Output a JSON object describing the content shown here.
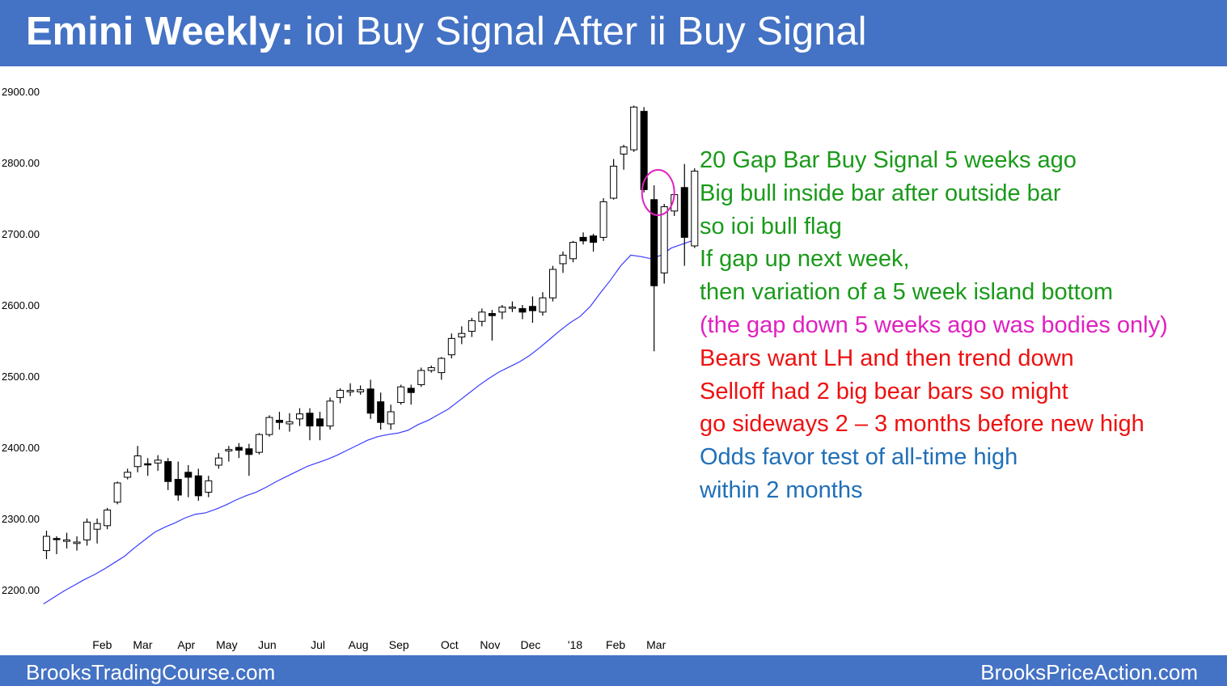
{
  "header": {
    "title_bold": "Emini Weekly:",
    "title_rest": "ioi Buy Signal After ii Buy Signal"
  },
  "footer": {
    "left": "BrooksTradingCourse.com",
    "right": "BrooksPriceAction.com"
  },
  "colors": {
    "banner": "#4472c4",
    "ma_line": "#3b3bff",
    "circle": "#e020c0",
    "green": "#1a9a1a",
    "magenta": "#e020c0",
    "red": "#ee1111",
    "blue": "#1f6fb8"
  },
  "notes": [
    {
      "text": "20 Gap Bar Buy Signal 5 weeks ago",
      "color": "#1a9a1a"
    },
    {
      "text": "Big bull inside bar after outside bar",
      "color": "#1a9a1a"
    },
    {
      "text": "so ioi bull flag",
      "color": "#1a9a1a"
    },
    {
      "text": "If gap up next week,",
      "color": "#1a9a1a"
    },
    {
      "text": "then  variation of a 5 week island bottom",
      "color": "#1a9a1a"
    },
    {
      "text": "(the gap down 5 weeks ago was bodies only)",
      "color": "#e020c0"
    },
    {
      "text": "Bears want LH and then trend down",
      "color": "#ee1111"
    },
    {
      "text": "Selloff had 2 big bear bars so might",
      "color": "#ee1111"
    },
    {
      "text": "go sideways 2 – 3 months before new high",
      "color": "#ee1111"
    },
    {
      "text": "Odds favor test of all-time high",
      "color": "#1f6fb8"
    },
    {
      "text": "within 2 months",
      "color": "#1f6fb8"
    }
  ],
  "chart_data": {
    "type": "candlestick",
    "y_ticks": [
      "2900.00",
      "2800.00",
      "2700.00",
      "2600.00",
      "2500.00",
      "2400.00",
      "2300.00",
      "2200.00"
    ],
    "ylim": [
      2200,
      2900
    ],
    "x_ticks": [
      {
        "label": "Feb",
        "week": 5.5
      },
      {
        "label": "Mar",
        "week": 9.5
      },
      {
        "label": "Apr",
        "week": 13.8
      },
      {
        "label": "May",
        "week": 17.8
      },
      {
        "label": "Jun",
        "week": 21.8
      },
      {
        "label": "Jul",
        "week": 26.8
      },
      {
        "label": "Aug",
        "week": 30.8
      },
      {
        "label": "Sep",
        "week": 34.8
      },
      {
        "label": "Oct",
        "week": 39.8
      },
      {
        "label": "Nov",
        "week": 43.8
      },
      {
        "label": "Dec",
        "week": 47.8
      },
      {
        "label": "'18",
        "week": 52.2
      },
      {
        "label": "Feb",
        "week": 56.2
      },
      {
        "label": "Mar",
        "week": 60.2
      }
    ],
    "candles": [
      {
        "o": 2255,
        "h": 2283,
        "l": 2243,
        "c": 2275
      },
      {
        "o": 2272,
        "h": 2275,
        "l": 2250,
        "c": 2271
      },
      {
        "o": 2268,
        "h": 2280,
        "l": 2258,
        "c": 2270
      },
      {
        "o": 2265,
        "h": 2275,
        "l": 2255,
        "c": 2267
      },
      {
        "o": 2270,
        "h": 2300,
        "l": 2262,
        "c": 2295
      },
      {
        "o": 2285,
        "h": 2300,
        "l": 2265,
        "c": 2293
      },
      {
        "o": 2290,
        "h": 2315,
        "l": 2285,
        "c": 2312
      },
      {
        "o": 2323,
        "h": 2352,
        "l": 2320,
        "c": 2350
      },
      {
        "o": 2358,
        "h": 2370,
        "l": 2355,
        "c": 2365
      },
      {
        "o": 2373,
        "h": 2402,
        "l": 2365,
        "c": 2388
      },
      {
        "o": 2377,
        "h": 2385,
        "l": 2360,
        "c": 2376
      },
      {
        "o": 2378,
        "h": 2389,
        "l": 2367,
        "c": 2382
      },
      {
        "o": 2380,
        "h": 2385,
        "l": 2340,
        "c": 2352
      },
      {
        "o": 2355,
        "h": 2380,
        "l": 2325,
        "c": 2333
      },
      {
        "o": 2365,
        "h": 2375,
        "l": 2330,
        "c": 2358
      },
      {
        "o": 2360,
        "h": 2370,
        "l": 2325,
        "c": 2332
      },
      {
        "o": 2337,
        "h": 2360,
        "l": 2330,
        "c": 2353
      },
      {
        "o": 2375,
        "h": 2392,
        "l": 2370,
        "c": 2385
      },
      {
        "o": 2395,
        "h": 2402,
        "l": 2380,
        "c": 2397
      },
      {
        "o": 2400,
        "h": 2406,
        "l": 2385,
        "c": 2396
      },
      {
        "o": 2398,
        "h": 2405,
        "l": 2360,
        "c": 2390
      },
      {
        "o": 2393,
        "h": 2420,
        "l": 2390,
        "c": 2418
      },
      {
        "o": 2418,
        "h": 2445,
        "l": 2415,
        "c": 2442
      },
      {
        "o": 2438,
        "h": 2450,
        "l": 2425,
        "c": 2435
      },
      {
        "o": 2433,
        "h": 2448,
        "l": 2422,
        "c": 2436
      },
      {
        "o": 2440,
        "h": 2455,
        "l": 2430,
        "c": 2447
      },
      {
        "o": 2448,
        "h": 2455,
        "l": 2410,
        "c": 2430
      },
      {
        "o": 2440,
        "h": 2450,
        "l": 2410,
        "c": 2430
      },
      {
        "o": 2430,
        "h": 2470,
        "l": 2425,
        "c": 2465
      },
      {
        "o": 2470,
        "h": 2483,
        "l": 2462,
        "c": 2480
      },
      {
        "o": 2478,
        "h": 2490,
        "l": 2472,
        "c": 2480
      },
      {
        "o": 2478,
        "h": 2487,
        "l": 2474,
        "c": 2481
      },
      {
        "o": 2482,
        "h": 2495,
        "l": 2440,
        "c": 2448
      },
      {
        "o": 2464,
        "h": 2477,
        "l": 2425,
        "c": 2435
      },
      {
        "o": 2433,
        "h": 2460,
        "l": 2425,
        "c": 2450
      },
      {
        "o": 2463,
        "h": 2488,
        "l": 2460,
        "c": 2485
      },
      {
        "o": 2483,
        "h": 2488,
        "l": 2460,
        "c": 2477
      },
      {
        "o": 2488,
        "h": 2512,
        "l": 2485,
        "c": 2508
      },
      {
        "o": 2508,
        "h": 2515,
        "l": 2505,
        "c": 2512
      },
      {
        "o": 2505,
        "h": 2527,
        "l": 2495,
        "c": 2525
      },
      {
        "o": 2530,
        "h": 2560,
        "l": 2525,
        "c": 2553
      },
      {
        "o": 2555,
        "h": 2570,
        "l": 2545,
        "c": 2560
      },
      {
        "o": 2563,
        "h": 2582,
        "l": 2555,
        "c": 2578
      },
      {
        "o": 2577,
        "h": 2595,
        "l": 2570,
        "c": 2590
      },
      {
        "o": 2588,
        "h": 2593,
        "l": 2550,
        "c": 2585
      },
      {
        "o": 2590,
        "h": 2600,
        "l": 2580,
        "c": 2597
      },
      {
        "o": 2597,
        "h": 2605,
        "l": 2590,
        "c": 2597
      },
      {
        "o": 2595,
        "h": 2600,
        "l": 2580,
        "c": 2590
      },
      {
        "o": 2598,
        "h": 2612,
        "l": 2575,
        "c": 2592
      },
      {
        "o": 2590,
        "h": 2618,
        "l": 2585,
        "c": 2610
      },
      {
        "o": 2610,
        "h": 2655,
        "l": 2605,
        "c": 2650
      },
      {
        "o": 2658,
        "h": 2675,
        "l": 2645,
        "c": 2670
      },
      {
        "o": 2665,
        "h": 2690,
        "l": 2660,
        "c": 2688
      },
      {
        "o": 2695,
        "h": 2702,
        "l": 2685,
        "c": 2690
      },
      {
        "o": 2697,
        "h": 2700,
        "l": 2675,
        "c": 2688
      },
      {
        "o": 2695,
        "h": 2750,
        "l": 2690,
        "c": 2745
      },
      {
        "o": 2750,
        "h": 2805,
        "l": 2748,
        "c": 2795
      },
      {
        "o": 2812,
        "h": 2825,
        "l": 2790,
        "c": 2822
      },
      {
        "o": 2818,
        "h": 2880,
        "l": 2815,
        "c": 2878
      },
      {
        "o": 2872,
        "h": 2878,
        "l": 2758,
        "c": 2762
      },
      {
        "o": 2748,
        "h": 2768,
        "l": 2535,
        "c": 2627
      },
      {
        "o": 2645,
        "h": 2742,
        "l": 2630,
        "c": 2738
      },
      {
        "o": 2732,
        "h": 2760,
        "l": 2725,
        "c": 2755
      },
      {
        "o": 2765,
        "h": 2798,
        "l": 2655,
        "c": 2695
      },
      {
        "o": 2683,
        "h": 2792,
        "l": 2680,
        "c": 2788
      }
    ],
    "moving_average": [
      2180,
      2189,
      2198,
      2206,
      2214,
      2221,
      2229,
      2238,
      2247,
      2259,
      2270,
      2281,
      2288,
      2294,
      2301,
      2306,
      2308,
      2313,
      2319,
      2326,
      2332,
      2337,
      2344,
      2352,
      2359,
      2366,
      2373,
      2378,
      2383,
      2389,
      2396,
      2403,
      2410,
      2415,
      2418,
      2420,
      2424,
      2432,
      2438,
      2446,
      2454,
      2465,
      2476,
      2487,
      2497,
      2506,
      2513,
      2520,
      2529,
      2540,
      2552,
      2564,
      2575,
      2584,
      2598,
      2617,
      2635,
      2655,
      2670,
      2668,
      2665,
      2670,
      2680,
      2685,
      2690
    ],
    "circle": {
      "week": 60.4,
      "price": 2758
    }
  }
}
